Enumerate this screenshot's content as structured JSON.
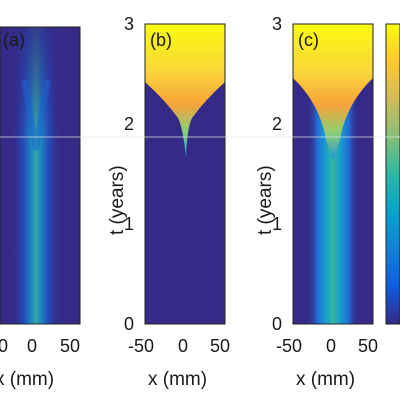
{
  "chart_data": [
    {
      "type": "heatmap",
      "panel_label": "(a)",
      "xlabel": "x (mm)",
      "ylabel": "",
      "x_ticks": [
        "0",
        "0",
        "50"
      ],
      "y_ticks": [],
      "xlim": [
        -50,
        50
      ],
      "ylim": [
        0,
        3
      ],
      "description_values": {
        "background_level": 0.0,
        "max_level": 0.35
      }
    },
    {
      "type": "heatmap",
      "panel_label": "(b)",
      "xlabel": "x (mm)",
      "ylabel": "t (years)",
      "x_ticks": [
        "-50",
        "0",
        "50"
      ],
      "y_ticks": [
        "0",
        "1",
        "2",
        "3"
      ],
      "xlim": [
        -50,
        50
      ],
      "ylim": [
        0,
        3
      ],
      "description_values": {
        "background_level": 0.0,
        "max_level": 1.0
      }
    },
    {
      "type": "heatmap",
      "panel_label": "(c)",
      "xlabel": "x (mm)",
      "ylabel": "t (years)",
      "x_ticks": [
        "-50",
        "0",
        "50"
      ],
      "y_ticks": [
        "0",
        "1",
        "2",
        "3"
      ],
      "xlim": [
        -50,
        50
      ],
      "ylim": [
        0,
        3
      ],
      "description_values": {
        "background_level": 0.0,
        "max_level": 1.0
      }
    }
  ],
  "colorbar": {
    "colors": [
      "#352a87",
      "#0f5cdd",
      "#1481d6",
      "#06a4ca",
      "#2eb7a4",
      "#87bf77",
      "#d1bb59",
      "#fec832",
      "#f9fb0e"
    ]
  }
}
